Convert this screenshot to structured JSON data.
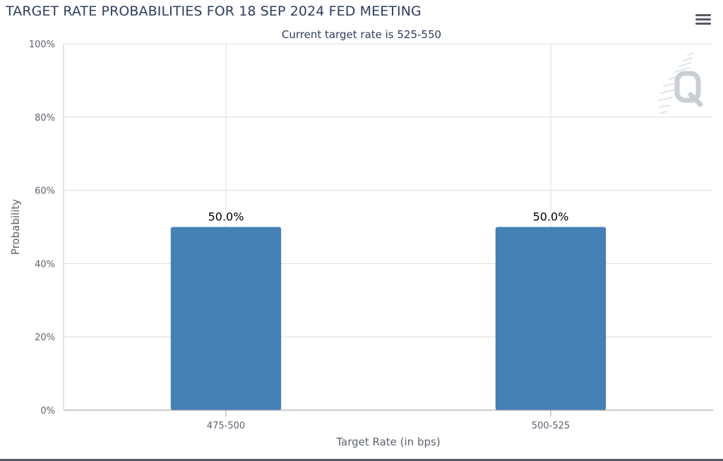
{
  "header": {
    "title": "TARGET RATE PROBABILITIES FOR 18 SEP 2024 FED MEETING",
    "subtitle": "Current target rate is 525-550",
    "menu_icon": "hamburger-menu-icon",
    "watermark_icon": "q-logo-watermark-icon"
  },
  "colors": {
    "bar": "#4580b6",
    "title": "#2f3e5c",
    "axis_text": "#5c6270",
    "grid": "#dddddd",
    "data_label": "#000000"
  },
  "chart_data": {
    "type": "bar",
    "title": "TARGET RATE PROBABILITIES FOR 18 SEP 2024 FED MEETING",
    "subtitle": "Current target rate is 525-550",
    "categories": [
      "475-500",
      "500-525"
    ],
    "series": [
      {
        "values": [
          50.0,
          50.0
        ]
      }
    ],
    "data_labels": [
      "50.0%",
      "50.0%"
    ],
    "xlabel": "Target Rate (in bps)",
    "ylabel": "Probability",
    "ylim": [
      0,
      100
    ],
    "yticks": [
      0,
      20,
      40,
      60,
      80,
      100
    ],
    "ytick_labels": [
      "0%",
      "20%",
      "40%",
      "60%",
      "80%",
      "100%"
    ],
    "grid": true,
    "legend": "none"
  }
}
